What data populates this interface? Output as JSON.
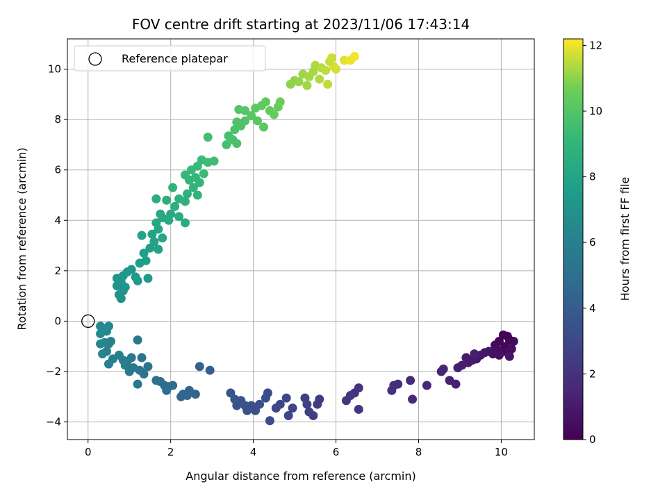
{
  "chart_data": {
    "type": "scatter",
    "title": "FOV centre drift starting at 2023/11/06 17:43:14",
    "xlabel": "Angular distance from reference (arcmin)",
    "ylabel": "Rotation from reference (arcmin)",
    "xlim": [
      -0.5,
      10.8
    ],
    "ylim": [
      -4.7,
      11.2
    ],
    "xticks": [
      0,
      2,
      4,
      6,
      8,
      10
    ],
    "yticks": [
      -4,
      -2,
      0,
      2,
      4,
      6,
      8,
      10
    ],
    "grid": true,
    "colormap": "viridis",
    "colorbar": {
      "label": "Hours from first FF file",
      "range": [
        0,
        12.2
      ],
      "ticks": [
        0,
        2,
        4,
        6,
        8,
        10,
        12
      ]
    },
    "legend": {
      "placement": "top-left",
      "entries": [
        {
          "label": "Reference platepar",
          "marker": "open-circle"
        }
      ]
    },
    "reference_point": {
      "x": 0,
      "y": 0
    },
    "series": [
      {
        "points": [
          {
            "x": 10.15,
            "y": -0.6,
            "t": 0.05
          },
          {
            "x": 10.05,
            "y": -0.55,
            "t": 0.1
          },
          {
            "x": 10.2,
            "y": -0.75,
            "t": 0.15
          },
          {
            "x": 9.95,
            "y": -0.8,
            "t": 0.2
          },
          {
            "x": 10.1,
            "y": -1.0,
            "t": 0.25
          },
          {
            "x": 9.85,
            "y": -0.95,
            "t": 0.3
          },
          {
            "x": 10.3,
            "y": -0.8,
            "t": 0.35
          },
          {
            "x": 10.0,
            "y": -1.2,
            "t": 0.4
          },
          {
            "x": 9.9,
            "y": -1.1,
            "t": 0.45
          },
          {
            "x": 10.15,
            "y": -1.25,
            "t": 0.5
          },
          {
            "x": 10.25,
            "y": -1.1,
            "t": 0.55
          },
          {
            "x": 9.8,
            "y": -1.3,
            "t": 0.6
          },
          {
            "x": 9.95,
            "y": -1.35,
            "t": 0.65
          },
          {
            "x": 10.2,
            "y": -1.4,
            "t": 0.7
          },
          {
            "x": 9.7,
            "y": -1.2,
            "t": 0.75
          },
          {
            "x": 9.6,
            "y": -1.25,
            "t": 0.8
          },
          {
            "x": 9.5,
            "y": -1.35,
            "t": 0.85
          },
          {
            "x": 9.4,
            "y": -1.5,
            "t": 0.9
          },
          {
            "x": 9.3,
            "y": -1.55,
            "t": 0.95
          },
          {
            "x": 9.2,
            "y": -1.65,
            "t": 1.0
          },
          {
            "x": 9.15,
            "y": -1.45,
            "t": 1.05
          },
          {
            "x": 9.05,
            "y": -1.75,
            "t": 1.1
          },
          {
            "x": 8.95,
            "y": -1.85,
            "t": 1.15
          },
          {
            "x": 9.35,
            "y": -1.3,
            "t": 1.2
          },
          {
            "x": 8.9,
            "y": -2.5,
            "t": 1.25
          },
          {
            "x": 8.75,
            "y": -2.35,
            "t": 1.3
          },
          {
            "x": 8.6,
            "y": -1.9,
            "t": 1.35
          },
          {
            "x": 8.55,
            "y": -2.0,
            "t": 1.4
          },
          {
            "x": 8.2,
            "y": -2.55,
            "t": 1.5
          },
          {
            "x": 7.8,
            "y": -2.35,
            "t": 1.6
          },
          {
            "x": 7.85,
            "y": -3.1,
            "t": 1.65
          },
          {
            "x": 7.5,
            "y": -2.5,
            "t": 1.75
          },
          {
            "x": 7.4,
            "y": -2.55,
            "t": 1.8
          },
          {
            "x": 7.35,
            "y": -2.75,
            "t": 1.85
          },
          {
            "x": 6.55,
            "y": -2.65,
            "t": 2.05
          },
          {
            "x": 6.45,
            "y": -2.85,
            "t": 2.1
          },
          {
            "x": 6.35,
            "y": -2.95,
            "t": 2.15
          },
          {
            "x": 6.25,
            "y": -3.15,
            "t": 2.2
          },
          {
            "x": 6.55,
            "y": -3.5,
            "t": 2.25
          },
          {
            "x": 5.6,
            "y": -3.1,
            "t": 2.45
          },
          {
            "x": 5.55,
            "y": -3.3,
            "t": 2.5
          },
          {
            "x": 5.45,
            "y": -3.75,
            "t": 2.55
          },
          {
            "x": 5.35,
            "y": -3.6,
            "t": 2.6
          },
          {
            "x": 5.3,
            "y": -3.3,
            "t": 2.65
          },
          {
            "x": 5.25,
            "y": -3.05,
            "t": 2.7
          },
          {
            "x": 4.95,
            "y": -3.45,
            "t": 2.85
          },
          {
            "x": 4.85,
            "y": -3.75,
            "t": 2.9
          },
          {
            "x": 4.8,
            "y": -3.05,
            "t": 2.95
          },
          {
            "x": 4.65,
            "y": -3.3,
            "t": 3.0
          },
          {
            "x": 4.55,
            "y": -3.45,
            "t": 3.05
          },
          {
            "x": 4.4,
            "y": -3.95,
            "t": 3.15
          },
          {
            "x": 4.35,
            "y": -2.85,
            "t": 3.2
          },
          {
            "x": 4.3,
            "y": -3.05,
            "t": 3.25
          },
          {
            "x": 4.15,
            "y": -3.3,
            "t": 3.3
          },
          {
            "x": 4.05,
            "y": -3.55,
            "t": 3.35
          },
          {
            "x": 3.95,
            "y": -3.35,
            "t": 3.4
          },
          {
            "x": 3.85,
            "y": -3.55,
            "t": 3.45
          },
          {
            "x": 3.8,
            "y": -3.35,
            "t": 3.5
          },
          {
            "x": 3.7,
            "y": -3.15,
            "t": 3.55
          },
          {
            "x": 3.6,
            "y": -3.35,
            "t": 3.6
          },
          {
            "x": 3.55,
            "y": -3.1,
            "t": 3.65
          },
          {
            "x": 3.45,
            "y": -2.85,
            "t": 3.7
          },
          {
            "x": 2.95,
            "y": -1.95,
            "t": 4.2
          },
          {
            "x": 2.7,
            "y": -1.8,
            "t": 4.3
          },
          {
            "x": 2.6,
            "y": -2.9,
            "t": 4.4
          },
          {
            "x": 2.45,
            "y": -2.75,
            "t": 4.45
          },
          {
            "x": 2.4,
            "y": -2.95,
            "t": 4.5
          },
          {
            "x": 2.3,
            "y": -2.9,
            "t": 4.55
          },
          {
            "x": 2.25,
            "y": -3.0,
            "t": 4.6
          },
          {
            "x": 2.05,
            "y": -2.55,
            "t": 4.8
          },
          {
            "x": 1.95,
            "y": -2.6,
            "t": 4.85
          },
          {
            "x": 1.9,
            "y": -2.75,
            "t": 4.9
          },
          {
            "x": 1.85,
            "y": -2.55,
            "t": 4.95
          },
          {
            "x": 1.75,
            "y": -2.4,
            "t": 5.0
          },
          {
            "x": 1.65,
            "y": -2.35,
            "t": 5.05
          },
          {
            "x": 1.45,
            "y": -1.8,
            "t": 5.2
          },
          {
            "x": 1.35,
            "y": -2.1,
            "t": 5.3
          },
          {
            "x": 1.3,
            "y": -1.45,
            "t": 5.35
          },
          {
            "x": 1.25,
            "y": -1.95,
            "t": 5.4
          },
          {
            "x": 1.2,
            "y": -2.5,
            "t": 5.45
          },
          {
            "x": 1.2,
            "y": -0.75,
            "t": 5.5
          },
          {
            "x": 1.1,
            "y": -1.85,
            "t": 5.55
          },
          {
            "x": 1.05,
            "y": -1.45,
            "t": 5.6
          },
          {
            "x": 1.0,
            "y": -2.0,
            "t": 5.65
          },
          {
            "x": 0.95,
            "y": -1.6,
            "t": 5.7
          },
          {
            "x": 0.9,
            "y": -1.75,
            "t": 5.75
          },
          {
            "x": 0.85,
            "y": -1.55,
            "t": 5.8
          },
          {
            "x": 0.75,
            "y": -1.35,
            "t": 5.9
          },
          {
            "x": 0.6,
            "y": -1.5,
            "t": 5.95
          },
          {
            "x": 0.5,
            "y": -1.7,
            "t": 6.0
          },
          {
            "x": 0.45,
            "y": -1.2,
            "t": 6.05
          },
          {
            "x": 0.5,
            "y": -0.9,
            "t": 6.1
          },
          {
            "x": 0.55,
            "y": -0.8,
            "t": 6.15
          },
          {
            "x": 0.4,
            "y": -0.85,
            "t": 6.2
          },
          {
            "x": 0.35,
            "y": -1.3,
            "t": 6.25
          },
          {
            "x": 0.3,
            "y": -0.9,
            "t": 6.3
          },
          {
            "x": 0.45,
            "y": -0.4,
            "t": 6.35
          },
          {
            "x": 0.3,
            "y": -0.5,
            "t": 6.4
          },
          {
            "x": 0.5,
            "y": -0.2,
            "t": 6.45
          },
          {
            "x": 0.3,
            "y": -0.2,
            "t": 6.5
          },
          {
            "x": 0.4,
            "y": -0.3,
            "t": 6.55
          },
          {
            "x": 0.8,
            "y": 0.9,
            "t": 6.9
          },
          {
            "x": 0.75,
            "y": 1.05,
            "t": 6.95
          },
          {
            "x": 0.85,
            "y": 1.2,
            "t": 7.0
          },
          {
            "x": 0.7,
            "y": 1.4,
            "t": 7.05
          },
          {
            "x": 0.8,
            "y": 1.55,
            "t": 7.1
          },
          {
            "x": 0.9,
            "y": 1.35,
            "t": 7.15
          },
          {
            "x": 0.7,
            "y": 1.7,
            "t": 7.2
          },
          {
            "x": 0.85,
            "y": 1.8,
            "t": 7.25
          },
          {
            "x": 0.95,
            "y": 1.95,
            "t": 7.3
          },
          {
            "x": 1.05,
            "y": 2.05,
            "t": 7.35
          },
          {
            "x": 1.15,
            "y": 1.75,
            "t": 7.4
          },
          {
            "x": 1.2,
            "y": 1.6,
            "t": 7.45
          },
          {
            "x": 1.45,
            "y": 1.7,
            "t": 7.5
          },
          {
            "x": 1.25,
            "y": 2.3,
            "t": 7.6
          },
          {
            "x": 1.4,
            "y": 2.4,
            "t": 7.7
          },
          {
            "x": 1.35,
            "y": 2.7,
            "t": 7.75
          },
          {
            "x": 1.5,
            "y": 2.9,
            "t": 7.8
          },
          {
            "x": 1.6,
            "y": 3.15,
            "t": 7.85
          },
          {
            "x": 1.7,
            "y": 2.85,
            "t": 7.9
          },
          {
            "x": 1.3,
            "y": 3.4,
            "t": 7.95
          },
          {
            "x": 1.55,
            "y": 3.45,
            "t": 8.0
          },
          {
            "x": 1.7,
            "y": 3.65,
            "t": 8.05
          },
          {
            "x": 1.8,
            "y": 3.3,
            "t": 8.1
          },
          {
            "x": 1.65,
            "y": 3.9,
            "t": 8.15
          },
          {
            "x": 1.8,
            "y": 4.1,
            "t": 8.2
          },
          {
            "x": 1.95,
            "y": 4.0,
            "t": 8.25
          },
          {
            "x": 1.75,
            "y": 4.25,
            "t": 8.3
          },
          {
            "x": 2.0,
            "y": 4.25,
            "t": 8.35
          },
          {
            "x": 2.2,
            "y": 4.15,
            "t": 8.45
          },
          {
            "x": 2.35,
            "y": 3.9,
            "t": 8.5
          },
          {
            "x": 1.65,
            "y": 4.85,
            "t": 8.55
          },
          {
            "x": 1.9,
            "y": 4.8,
            "t": 8.6
          },
          {
            "x": 2.1,
            "y": 4.55,
            "t": 8.65
          },
          {
            "x": 2.2,
            "y": 4.85,
            "t": 8.7
          },
          {
            "x": 2.35,
            "y": 4.75,
            "t": 8.75
          },
          {
            "x": 2.4,
            "y": 5.05,
            "t": 8.8
          },
          {
            "x": 2.05,
            "y": 5.3,
            "t": 8.85
          },
          {
            "x": 2.55,
            "y": 5.3,
            "t": 8.9
          },
          {
            "x": 2.65,
            "y": 5.0,
            "t": 8.95
          },
          {
            "x": 2.45,
            "y": 5.6,
            "t": 9.0
          },
          {
            "x": 2.6,
            "y": 5.7,
            "t": 9.05
          },
          {
            "x": 2.7,
            "y": 5.5,
            "t": 9.1
          },
          {
            "x": 2.35,
            "y": 5.8,
            "t": 9.15
          },
          {
            "x": 2.5,
            "y": 6.0,
            "t": 9.2
          },
          {
            "x": 2.65,
            "y": 6.15,
            "t": 9.25
          },
          {
            "x": 2.8,
            "y": 5.85,
            "t": 9.3
          },
          {
            "x": 2.75,
            "y": 6.4,
            "t": 9.35
          },
          {
            "x": 2.9,
            "y": 6.3,
            "t": 9.4
          },
          {
            "x": 3.05,
            "y": 6.35,
            "t": 9.45
          },
          {
            "x": 2.9,
            "y": 7.3,
            "t": 9.55
          },
          {
            "x": 3.35,
            "y": 7.0,
            "t": 9.6
          },
          {
            "x": 3.4,
            "y": 7.35,
            "t": 9.65
          },
          {
            "x": 3.5,
            "y": 7.2,
            "t": 9.7
          },
          {
            "x": 3.6,
            "y": 7.05,
            "t": 9.75
          },
          {
            "x": 3.55,
            "y": 7.6,
            "t": 9.8
          },
          {
            "x": 3.7,
            "y": 7.75,
            "t": 9.85
          },
          {
            "x": 3.6,
            "y": 7.9,
            "t": 9.9
          },
          {
            "x": 3.8,
            "y": 7.95,
            "t": 9.95
          },
          {
            "x": 3.65,
            "y": 8.4,
            "t": 10.0
          },
          {
            "x": 3.8,
            "y": 8.35,
            "t": 10.05
          },
          {
            "x": 3.95,
            "y": 8.15,
            "t": 10.1
          },
          {
            "x": 4.1,
            "y": 7.95,
            "t": 10.15
          },
          {
            "x": 4.25,
            "y": 7.7,
            "t": 10.2
          },
          {
            "x": 4.05,
            "y": 8.45,
            "t": 10.25
          },
          {
            "x": 4.2,
            "y": 8.55,
            "t": 10.3
          },
          {
            "x": 4.3,
            "y": 8.7,
            "t": 10.35
          },
          {
            "x": 4.4,
            "y": 8.35,
            "t": 10.4
          },
          {
            "x": 4.5,
            "y": 8.2,
            "t": 10.45
          },
          {
            "x": 4.6,
            "y": 8.5,
            "t": 10.5
          },
          {
            "x": 4.65,
            "y": 8.7,
            "t": 10.55
          },
          {
            "x": 4.9,
            "y": 9.4,
            "t": 11.0
          },
          {
            "x": 5.0,
            "y": 9.55,
            "t": 11.05
          },
          {
            "x": 5.1,
            "y": 9.5,
            "t": 11.1
          },
          {
            "x": 5.2,
            "y": 9.8,
            "t": 11.15
          },
          {
            "x": 5.3,
            "y": 9.35,
            "t": 11.2
          },
          {
            "x": 5.35,
            "y": 9.7,
            "t": 11.25
          },
          {
            "x": 5.45,
            "y": 9.9,
            "t": 11.3
          },
          {
            "x": 5.5,
            "y": 10.15,
            "t": 11.35
          },
          {
            "x": 5.6,
            "y": 9.6,
            "t": 11.4
          },
          {
            "x": 5.65,
            "y": 10.05,
            "t": 11.45
          },
          {
            "x": 5.75,
            "y": 9.95,
            "t": 11.5
          },
          {
            "x": 5.8,
            "y": 9.4,
            "t": 11.55
          },
          {
            "x": 5.85,
            "y": 10.3,
            "t": 11.6
          },
          {
            "x": 5.9,
            "y": 10.45,
            "t": 11.65
          },
          {
            "x": 5.95,
            "y": 10.1,
            "t": 11.7
          },
          {
            "x": 6.0,
            "y": 10.0,
            "t": 11.75
          },
          {
            "x": 6.2,
            "y": 10.35,
            "t": 11.9
          },
          {
            "x": 6.35,
            "y": 10.35,
            "t": 12.0
          },
          {
            "x": 6.45,
            "y": 10.5,
            "t": 12.1
          }
        ]
      }
    ]
  }
}
